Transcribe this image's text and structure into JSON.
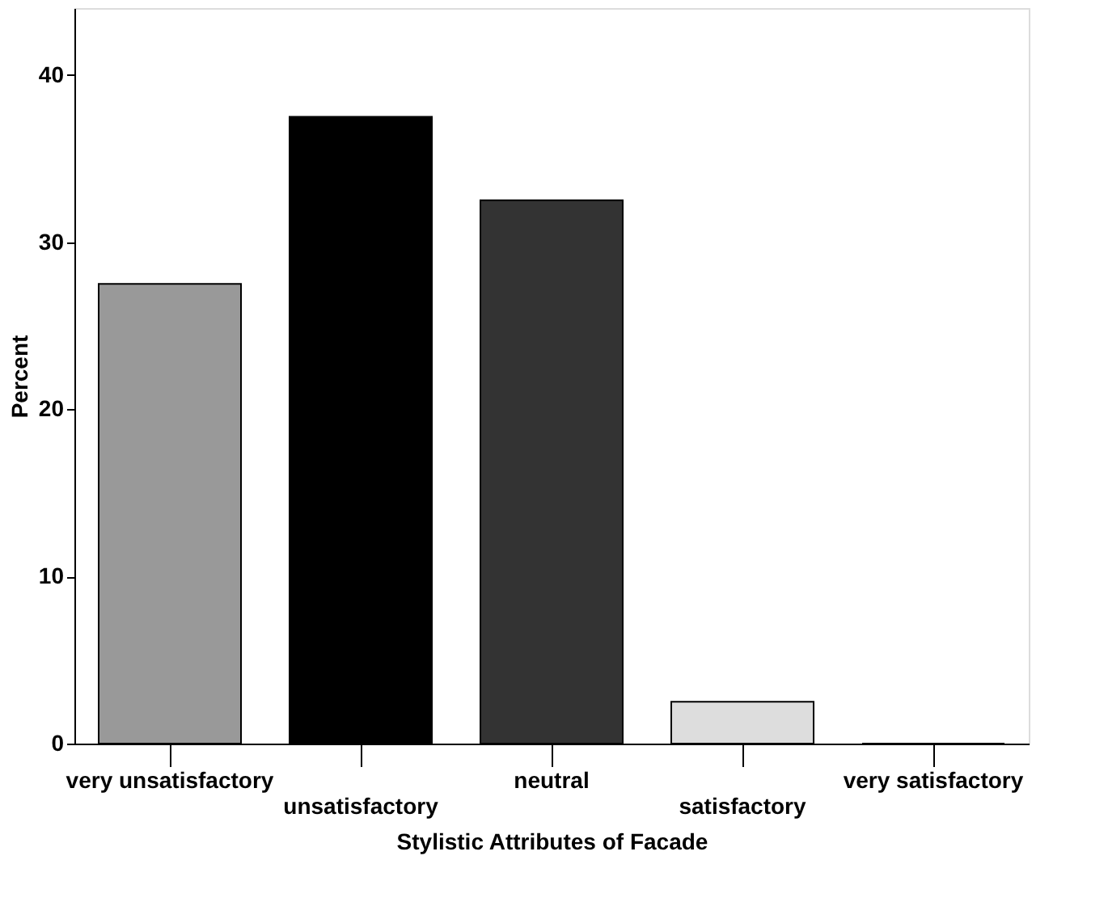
{
  "chart_data": {
    "type": "bar",
    "xlabel": "Stylistic Attributes of Facade",
    "ylabel": "Percent",
    "categories": [
      "very unsatisfactory",
      "unsatisfactory",
      "neutral",
      "satisfactory",
      "very satisfactory"
    ],
    "values": [
      27.5,
      37.5,
      32.5,
      2.5,
      0
    ],
    "colors": [
      "#999999",
      "#000000",
      "#333333",
      "#dddddd",
      "#ffffff"
    ],
    "ylim": [
      0,
      44
    ],
    "yticks": [
      0,
      10,
      20,
      30,
      40
    ],
    "grid": false,
    "legend": false
  }
}
